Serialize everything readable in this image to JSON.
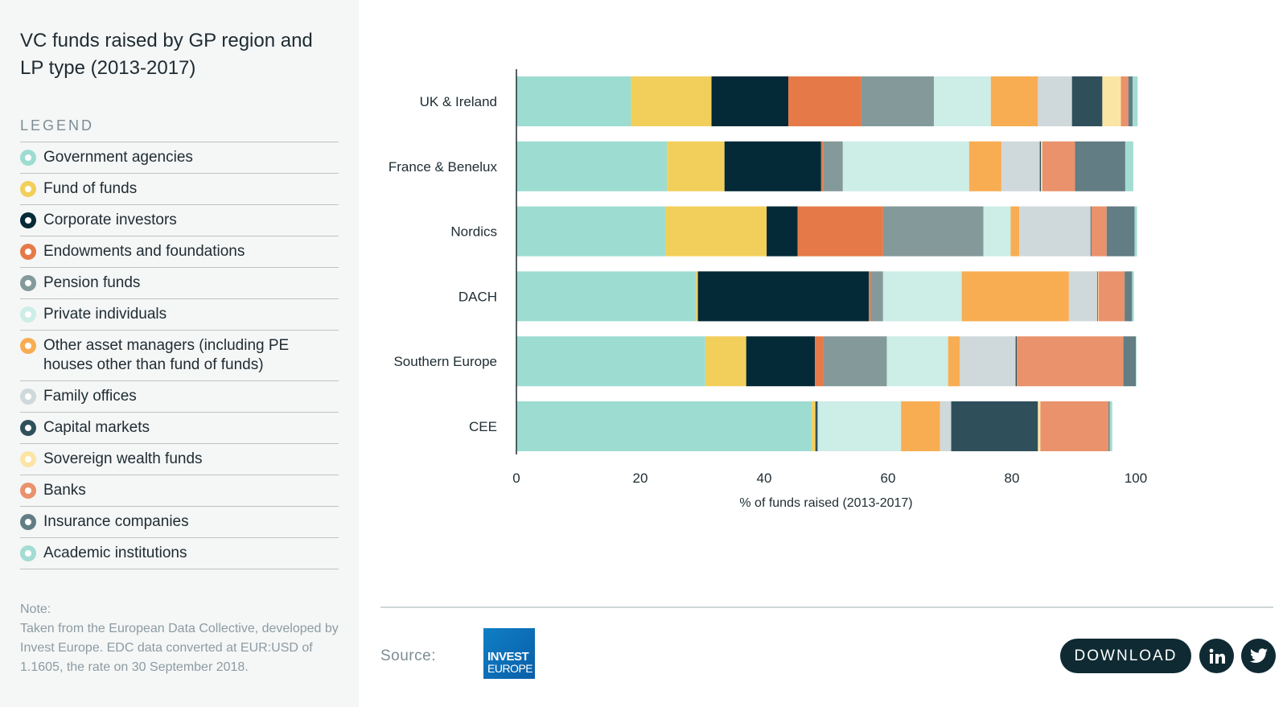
{
  "title": "VC funds raised by GP region and LP type (2013-2017)",
  "legend": {
    "heading": "LEGEND",
    "items": [
      {
        "label": "Government agencies",
        "color": "#9ddcd1"
      },
      {
        "label": "Fund of funds",
        "color": "#f2cf5b"
      },
      {
        "label": "Corporate investors",
        "color": "#042a37"
      },
      {
        "label": "Endowments and foundations",
        "color": "#e57a48"
      },
      {
        "label": "Pension funds",
        "color": "#84999a"
      },
      {
        "label": "Private individuals",
        "color": "#cdede7"
      },
      {
        "label": "Other asset managers (including PE houses other than fund of funds)",
        "color": "#f8ad52"
      },
      {
        "label": "Family offices",
        "color": "#cfd8da"
      },
      {
        "label": "Capital markets",
        "color": "#2f4f5b"
      },
      {
        "label": "Sovereign wealth funds",
        "color": "#fbe5a5"
      },
      {
        "label": "Banks",
        "color": "#e9926c"
      },
      {
        "label": "Insurance companies",
        "color": "#627d83"
      },
      {
        "label": "Academic institutions",
        "color": "#a3dcd3"
      }
    ]
  },
  "note": {
    "label": "Note:",
    "text": "Taken from the European Data Collective, developed by Invest Europe. EDC data converted at EUR:USD of 1.1605, the rate on 30 September 2018."
  },
  "footer": {
    "source_label": "Source:",
    "logo_line1": "INVEST",
    "logo_line2": "EUROPE",
    "download_label": "DOWNLOAD",
    "linkedin_icon": "linkedin-icon",
    "twitter_icon": "twitter-icon"
  },
  "chart_data": {
    "type": "bar",
    "orientation": "horizontal",
    "stacked": true,
    "categories": [
      "UK & Ireland",
      "France & Benelux",
      "Nordics",
      "DACH",
      "Southern Europe",
      "CEE"
    ],
    "series": [
      {
        "name": "Government agencies",
        "values": [
          18.5,
          24.3,
          24.1,
          29.0,
          30.5,
          47.7
        ]
      },
      {
        "name": "Fund of funds",
        "values": [
          13.0,
          9.3,
          16.3,
          0.3,
          6.6,
          0.6
        ]
      },
      {
        "name": "Corporate investors",
        "values": [
          12.4,
          15.6,
          5.0,
          27.6,
          11.1,
          0.2
        ]
      },
      {
        "name": "Endowments and foundations",
        "values": [
          11.8,
          0.3,
          13.8,
          0.3,
          1.4,
          0.0
        ]
      },
      {
        "name": "Pension funds",
        "values": [
          11.7,
          3.2,
          16.2,
          2.0,
          10.2,
          0.2
        ]
      },
      {
        "name": "Private individuals",
        "values": [
          9.2,
          20.4,
          4.4,
          12.7,
          9.9,
          13.4
        ]
      },
      {
        "name": "Other asset managers (including PE houses other than fund of funds)",
        "values": [
          7.6,
          5.2,
          1.4,
          17.3,
          1.9,
          6.3
        ]
      },
      {
        "name": "Family offices",
        "values": [
          5.5,
          6.2,
          11.5,
          4.6,
          9.0,
          1.8
        ]
      },
      {
        "name": "Capital markets",
        "values": [
          4.9,
          0.2,
          0.1,
          0.1,
          0.2,
          14.0
        ]
      },
      {
        "name": "Sovereign wealth funds",
        "values": [
          3.0,
          0.2,
          0.0,
          0.1,
          0.0,
          0.4
        ]
      },
      {
        "name": "Banks",
        "values": [
          1.2,
          5.3,
          2.5,
          4.2,
          17.2,
          11.0
        ]
      },
      {
        "name": "Insurance companies",
        "values": [
          0.7,
          8.1,
          4.5,
          1.2,
          2.0,
          0.2
        ]
      },
      {
        "name": "Academic institutions",
        "values": [
          0.8,
          1.3,
          0.4,
          0.3,
          0.1,
          0.4
        ]
      }
    ],
    "xlabel": "% of funds raised (2013-2017)",
    "ylabel": "",
    "xlim": [
      0,
      100
    ],
    "xticks": [
      0,
      20,
      40,
      60,
      80,
      100
    ],
    "grid": false,
    "legend_position": "left"
  }
}
